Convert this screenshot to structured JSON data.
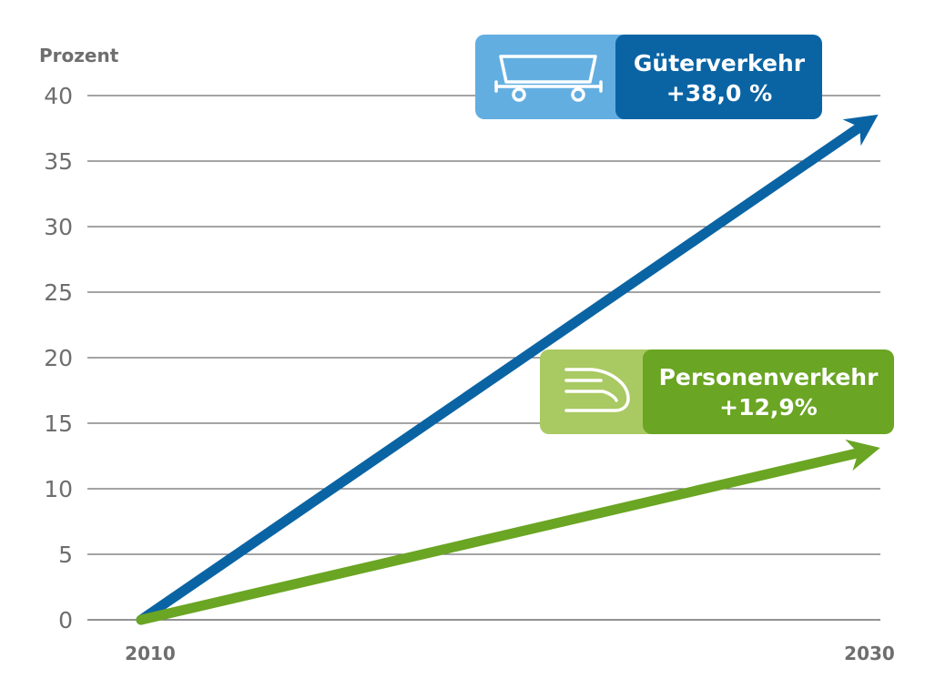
{
  "chart_data": {
    "type": "line",
    "ylabel": "Prozent",
    "ylim": [
      0,
      40
    ],
    "yticks": [
      0,
      5,
      10,
      15,
      20,
      25,
      30,
      35,
      40
    ],
    "x": [
      2010,
      2030
    ],
    "xticks": [
      "2010",
      "2030"
    ],
    "grid": true,
    "series": [
      {
        "name": "Güterverkehr",
        "values": [
          0,
          38.0
        ],
        "label": "+38,0 %",
        "color": "#0a64a4",
        "icon": "freight-wagon-icon"
      },
      {
        "name": "Personenverkehr",
        "values": [
          0,
          12.9
        ],
        "label": "+12,9%",
        "color": "#6aa523",
        "icon": "high-speed-train-icon"
      }
    ]
  },
  "colors": {
    "freight_dark": "#0a64a4",
    "freight_light": "#63aee1",
    "passenger_dark": "#6aa523",
    "passenger_light": "#a9c962",
    "grid": "#6e6e6e",
    "text": "#6e6e6e"
  }
}
